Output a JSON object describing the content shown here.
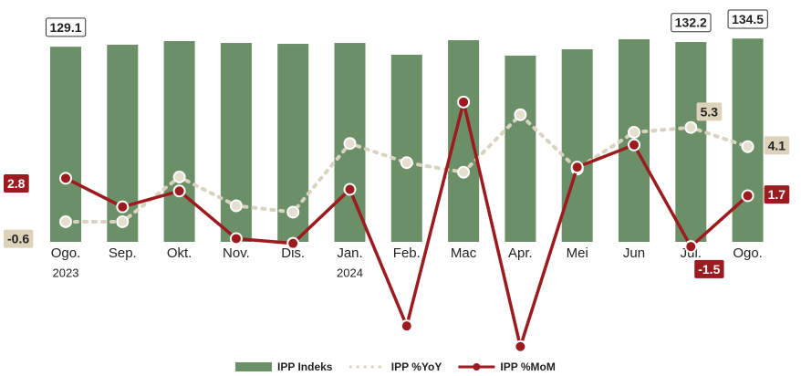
{
  "chart_data": {
    "type": "bar-line",
    "categories": [
      "Ogo.",
      "Sep.",
      "Okt.",
      "Nov.",
      "Dis.",
      "Jan.",
      "Feb.",
      "Mac",
      "Apr.",
      "Mei",
      "Jun",
      "Jul.",
      "Ogo."
    ],
    "sublabels": [
      "2023",
      null,
      null,
      null,
      null,
      "2024",
      null,
      null,
      null,
      null,
      null,
      null,
      null
    ],
    "ylim": [
      0,
      160
    ],
    "y2lim": [
      -9.86,
      13
    ],
    "y3lim": [
      -9.25,
      13.74
    ],
    "series": [
      {
        "name": "IPP Indeks",
        "type": "bar",
        "color": "#6b8f67",
        "values": [
          129.1,
          130.4,
          132.8,
          131.6,
          131.0,
          131.6,
          123.8,
          133.4,
          123.2,
          127.4,
          134.0,
          132.2,
          134.5
        ],
        "labels_at": [
          0,
          11,
          12
        ]
      },
      {
        "name": "IPP %YoY",
        "type": "line",
        "axis": "y2",
        "color": "#d9d2bf",
        "dashed": true,
        "values": [
          -0.6,
          -0.6,
          2.2,
          0.4,
          0.0,
          4.3,
          3.1,
          2.5,
          6.1,
          2.7,
          5.0,
          5.3,
          4.1
        ],
        "labels_at": [
          0,
          11,
          12
        ]
      },
      {
        "name": "IPP %MoM",
        "type": "line",
        "axis": "y3",
        "color": "#9b1b1f",
        "dashed": false,
        "values": [
          2.8,
          1.0,
          2.0,
          -1.0,
          -1.3,
          2.1,
          -6.5,
          7.6,
          -7.8,
          3.5,
          4.9,
          -1.5,
          1.7
        ],
        "labels_at": [
          0,
          11,
          12
        ]
      }
    ]
  }
}
